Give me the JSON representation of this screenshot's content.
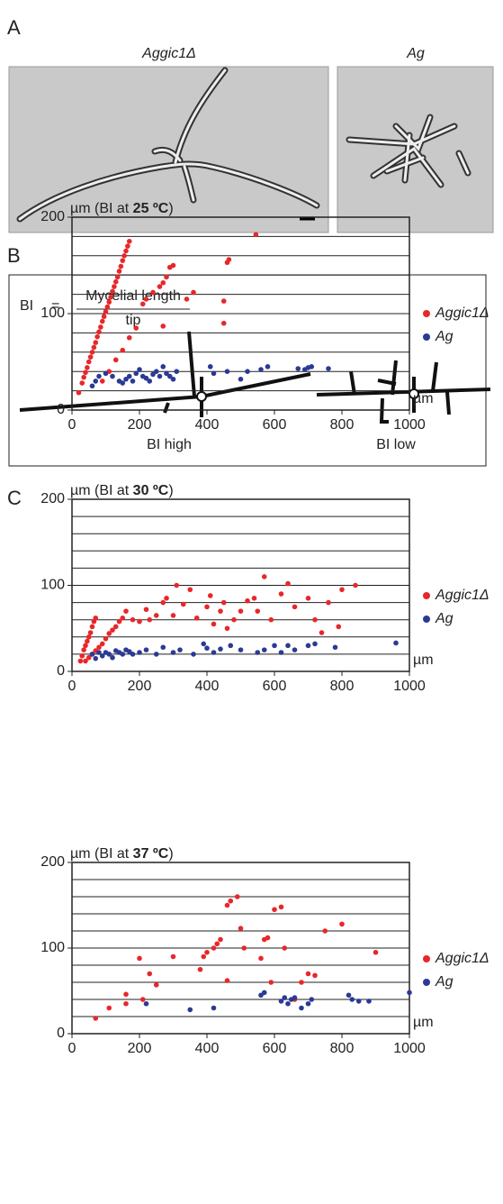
{
  "panel_a": {
    "label": "A",
    "images": [
      {
        "title": "Aggic1Δ"
      },
      {
        "title": "Ag"
      }
    ]
  },
  "panel_b": {
    "label": "B",
    "formula_left": "BI",
    "formula_eq": "=",
    "numerator": "Mycelial length",
    "denominator": "tip",
    "captions": [
      "BI high",
      "BI low"
    ]
  },
  "panel_c": {
    "label": "C"
  },
  "chart_data": [
    {
      "type": "scatter",
      "title_parts": [
        "µm (BI at ",
        "25 ºC",
        ")"
      ],
      "xlabel": "µm",
      "xlim": [
        0,
        1000
      ],
      "ylim": [
        0,
        200
      ],
      "xticks": [
        0,
        200,
        400,
        600,
        800,
        1000
      ],
      "yticks": [
        0,
        100,
        200
      ],
      "grid_lines": [
        20,
        40,
        60,
        80,
        100,
        120,
        140,
        160,
        180
      ],
      "series": [
        {
          "name": "Aggic1Δ",
          "color": "#e8272a",
          "x": [
            20,
            30,
            35,
            40,
            45,
            50,
            55,
            60,
            65,
            70,
            75,
            80,
            85,
            90,
            95,
            100,
            105,
            110,
            115,
            120,
            125,
            130,
            135,
            140,
            145,
            150,
            155,
            160,
            165,
            170,
            90,
            110,
            130,
            150,
            170,
            190,
            210,
            220,
            240,
            260,
            270,
            280,
            290,
            300,
            270,
            340,
            360,
            450,
            450,
            460,
            465,
            545
          ],
          "values": [
            18,
            28,
            34,
            39,
            44,
            50,
            55,
            60,
            65,
            70,
            76,
            81,
            86,
            92,
            97,
            102,
            107,
            112,
            117,
            123,
            128,
            133,
            138,
            144,
            149,
            155,
            160,
            165,
            170,
            175,
            30,
            40,
            52,
            62,
            75,
            85,
            110,
            115,
            122,
            128,
            132,
            138,
            148,
            150,
            87,
            115,
            122,
            90,
            113,
            153,
            156,
            182
          ]
        },
        {
          "name": "Ag",
          "color": "#2b3a93",
          "x": [
            60,
            70,
            80,
            100,
            120,
            140,
            150,
            160,
            170,
            180,
            190,
            200,
            210,
            220,
            230,
            240,
            250,
            260,
            270,
            280,
            290,
            300,
            310,
            410,
            420,
            460,
            500,
            520,
            560,
            580,
            670,
            690,
            700,
            710,
            760
          ],
          "values": [
            25,
            30,
            35,
            38,
            35,
            30,
            28,
            32,
            35,
            30,
            38,
            42,
            35,
            33,
            30,
            37,
            40,
            35,
            45,
            38,
            35,
            32,
            40,
            45,
            38,
            40,
            32,
            40,
            42,
            45,
            43,
            42,
            44,
            45,
            43
          ]
        }
      ]
    },
    {
      "type": "scatter",
      "title_parts": [
        "µm (BI at ",
        "30 ºC",
        ")"
      ],
      "xlabel": "µm",
      "xlim": [
        0,
        1000
      ],
      "ylim": [
        0,
        200
      ],
      "xticks": [
        0,
        200,
        400,
        600,
        800,
        1000
      ],
      "yticks": [
        0,
        100,
        200
      ],
      "grid_lines": [
        20,
        40,
        60,
        80,
        100,
        120,
        140,
        160,
        180
      ],
      "series": [
        {
          "name": "Aggic1Δ",
          "color": "#e8272a",
          "x": [
            25,
            30,
            35,
            40,
            45,
            50,
            55,
            60,
            65,
            70,
            40,
            50,
            60,
            70,
            80,
            90,
            100,
            110,
            120,
            130,
            140,
            150,
            160,
            180,
            200,
            220,
            230,
            250,
            270,
            280,
            300,
            310,
            330,
            350,
            370,
            400,
            410,
            420,
            440,
            450,
            460,
            480,
            500,
            520,
            540,
            550,
            570,
            590,
            620,
            640,
            660,
            700,
            720,
            740,
            760,
            790,
            800,
            840
          ],
          "values": [
            12,
            18,
            25,
            30,
            35,
            40,
            45,
            52,
            58,
            62,
            12,
            16,
            20,
            24,
            28,
            32,
            38,
            44,
            48,
            52,
            58,
            62,
            70,
            60,
            58,
            72,
            60,
            65,
            80,
            85,
            65,
            100,
            78,
            95,
            62,
            75,
            88,
            55,
            70,
            80,
            50,
            60,
            70,
            82,
            85,
            70,
            110,
            60,
            90,
            102,
            75,
            85,
            60,
            45,
            80,
            52,
            95,
            100
          ]
        },
        {
          "name": "Ag",
          "color": "#2b3a93",
          "x": [
            60,
            70,
            80,
            90,
            100,
            110,
            120,
            130,
            140,
            150,
            160,
            170,
            180,
            200,
            220,
            250,
            270,
            300,
            320,
            360,
            390,
            400,
            420,
            440,
            470,
            500,
            550,
            570,
            600,
            620,
            640,
            660,
            700,
            720,
            780,
            960
          ],
          "values": [
            20,
            15,
            22,
            18,
            22,
            20,
            16,
            24,
            22,
            20,
            25,
            23,
            20,
            22,
            25,
            20,
            28,
            22,
            25,
            20,
            32,
            27,
            22,
            26,
            30,
            25,
            22,
            25,
            30,
            22,
            30,
            25,
            30,
            32,
            28,
            33
          ]
        }
      ]
    },
    {
      "type": "scatter",
      "title_parts": [
        "µm (BI at ",
        "37 ºC",
        ")"
      ],
      "xlabel": "µm",
      "xlim": [
        0,
        1000
      ],
      "ylim": [
        0,
        200
      ],
      "xticks": [
        0,
        200,
        400,
        600,
        800,
        1000
      ],
      "yticks": [
        0,
        100,
        200
      ],
      "grid_lines": [
        20,
        40,
        60,
        80,
        100,
        120,
        140,
        160,
        180
      ],
      "series": [
        {
          "name": "Aggic1Δ",
          "color": "#e8272a",
          "x": [
            70,
            110,
            160,
            160,
            200,
            210,
            230,
            250,
            300,
            380,
            390,
            400,
            420,
            430,
            440,
            460,
            460,
            470,
            490,
            500,
            510,
            560,
            570,
            580,
            590,
            600,
            620,
            630,
            660,
            680,
            700,
            720,
            750,
            800,
            900
          ],
          "values": [
            18,
            30,
            35,
            46,
            88,
            40,
            70,
            57,
            90,
            75,
            90,
            95,
            100,
            105,
            110,
            62,
            150,
            155,
            160,
            123,
            100,
            88,
            110,
            112,
            60,
            145,
            148,
            100,
            40,
            60,
            70,
            68,
            120,
            128,
            95
          ]
        },
        {
          "name": "Ag",
          "color": "#2b3a93",
          "x": [
            220,
            350,
            420,
            560,
            570,
            620,
            630,
            640,
            650,
            660,
            680,
            700,
            710,
            820,
            830,
            850,
            880,
            1000
          ],
          "values": [
            35,
            28,
            30,
            45,
            48,
            38,
            42,
            35,
            40,
            42,
            30,
            35,
            40,
            45,
            40,
            38,
            38,
            48
          ]
        }
      ]
    }
  ]
}
